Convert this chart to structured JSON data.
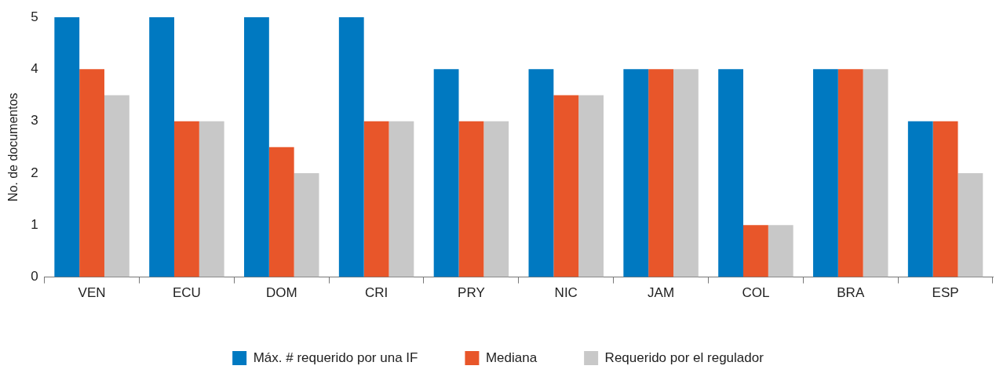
{
  "chart_data": {
    "type": "bar",
    "ylabel": "No. de documentos",
    "categories": [
      "VEN",
      "ECU",
      "DOM",
      "CRI",
      "PRY",
      "NIC",
      "JAM",
      "COL",
      "BRA",
      "ESP"
    ],
    "series": [
      {
        "name": "Máx. # requerido por una IF",
        "color": "#0079c1",
        "values": [
          5,
          5,
          5,
          5,
          4,
          4,
          4,
          4,
          4,
          3
        ]
      },
      {
        "name": "Mediana",
        "color": "#e8562a",
        "values": [
          4,
          3,
          2.5,
          3,
          3,
          3.5,
          4,
          1,
          4,
          3
        ]
      },
      {
        "name": "Requerido por el regulador",
        "color": "#c8c8c8",
        "values": [
          3.5,
          3,
          2,
          3,
          3,
          3.5,
          4,
          1,
          4,
          2
        ]
      }
    ],
    "ylim": [
      0,
      5
    ],
    "yticks": [
      0,
      1,
      2,
      3,
      4,
      5
    ],
    "grid": false,
    "legend": "bottom"
  }
}
